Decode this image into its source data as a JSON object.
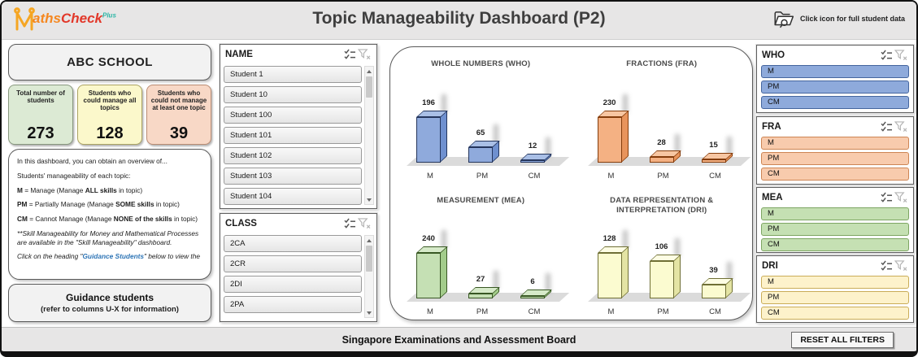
{
  "header": {
    "logo": {
      "part1": "aths",
      "part2": "Check",
      "part3": "Plus"
    },
    "title": "Topic Manageability Dashboard (P2)",
    "student_data_note": "Click icon for full student data"
  },
  "icons": {
    "logo_m": "stylized-M-pencils",
    "folder_search": "open-folder-with-magnifier",
    "multi_select": "checklist-with-checkmarks",
    "clear_filter": "funnel-with-x",
    "scroll_up": "triangle-up",
    "scroll_down": "triangle-down"
  },
  "left_panel": {
    "school_name": "ABC SCHOOL",
    "stat_cards": [
      {
        "label": "Total number of students",
        "value": "273",
        "bg": "#dcead4",
        "border": "#88987f"
      },
      {
        "label": "Students who could manage all topics",
        "value": "128",
        "bg": "#fbf8cb",
        "border": "#aca463"
      },
      {
        "label": "Students who could not manage at least one topic",
        "value": "39",
        "bg": "#f8d8c6",
        "border": "#bb8d74"
      }
    ],
    "info_box": {
      "intro": "In this dashboard, you can obtain an overview of...",
      "subheading": "Students' manageability of each topic:",
      "legend": [
        [
          {
            "t": "M",
            "b": 1
          },
          {
            "t": " = Manage (Manage "
          },
          {
            "t": "ALL skills",
            "b": 1
          },
          {
            "t": " in topic)"
          }
        ],
        [
          {
            "t": "PM",
            "b": 1
          },
          {
            "t": " = Partially Manage (Manage "
          },
          {
            "t": "SOME skills",
            "b": 1
          },
          {
            "t": " in topic)"
          }
        ],
        [
          {
            "t": "CM",
            "b": 1
          },
          {
            "t": " = Cannot Manage (Manage "
          },
          {
            "t": "NONE of the skills",
            "b": 1
          },
          {
            "t": " in topic)"
          }
        ]
      ],
      "note": [
        {
          "t": "**Skill Manageability for Money and Mathematical Processes are available in the \"Skill Manageability\" dashboard.",
          "i": 1
        }
      ],
      "link_line": [
        {
          "t": "Click on the heading \"",
          "i": 1
        },
        {
          "t": "Guidance Students",
          "i": 1,
          "b": 1,
          "c": "#2e75b6"
        },
        {
          "t": "\" below to view the",
          "i": 1
        }
      ]
    },
    "guidance_button": {
      "title": "Guidance students",
      "subtitle": "(refer to columns U-X for information)"
    }
  },
  "name_slicer": {
    "title": "NAME",
    "items": [
      "Student 1",
      "Student 10",
      "Student 100",
      "Student 101",
      "Student 102",
      "Student 103",
      "Student 104"
    ]
  },
  "class_slicer": {
    "title": "CLASS",
    "items": [
      "2CA",
      "2CR",
      "2DI",
      "2PA"
    ]
  },
  "chart_data": [
    {
      "type": "bar",
      "title": "WHOLE NUMBERS (WHO)",
      "categories": [
        "M",
        "PM",
        "CM"
      ],
      "values": [
        196,
        65,
        12
      ],
      "colors": {
        "front": "#8faadc",
        "top": "#a9bfe6",
        "side": "#6f90cf",
        "border": "#24355c"
      }
    },
    {
      "type": "bar",
      "title": "FRACTIONS (FRA)",
      "categories": [
        "M",
        "PM",
        "CM"
      ],
      "values": [
        230,
        28,
        15
      ],
      "colors": {
        "front": "#f4b183",
        "top": "#f7c6a2",
        "side": "#e8945c",
        "border": "#843c0c"
      }
    },
    {
      "type": "bar",
      "title": "MEASUREMENT (MEA)",
      "categories": [
        "M",
        "PM",
        "CM"
      ],
      "values": [
        240,
        27,
        6
      ],
      "colors": {
        "front": "#c5e0b4",
        "top": "#d6eac9",
        "side": "#a3cc8b",
        "border": "#385723"
      }
    },
    {
      "type": "bar",
      "title": "DATA REPRESENTATION & INTERPRETATION (DRI)",
      "categories": [
        "M",
        "PM",
        "CM"
      ],
      "values": [
        128,
        106,
        39
      ],
      "colors": {
        "front": "#fbfbd0",
        "top": "#fdfde4",
        "side": "#e4e4a4",
        "border": "#6f6f35"
      }
    }
  ],
  "topic_slicers": [
    {
      "title": "WHO",
      "items": [
        {
          "label": "M",
          "bg": "#8eaadb",
          "border": "#44659e"
        },
        {
          "label": "PM",
          "bg": "#8eaadb",
          "border": "#44659e"
        },
        {
          "label": "CM",
          "bg": "#8eaadb",
          "border": "#44659e"
        }
      ]
    },
    {
      "title": "FRA",
      "items": [
        {
          "label": "M",
          "bg": "#f8cbad",
          "border": "#cd8554"
        },
        {
          "label": "PM",
          "bg": "#f8cbad",
          "border": "#cd8554"
        },
        {
          "label": "CM",
          "bg": "#f8cbad",
          "border": "#cd8554"
        }
      ]
    },
    {
      "title": "MEA",
      "items": [
        {
          "label": "M",
          "bg": "#c5e0b3",
          "border": "#7da562"
        },
        {
          "label": "PM",
          "bg": "#c5e0b3",
          "border": "#7da562"
        },
        {
          "label": "CM",
          "bg": "#c5e0b3",
          "border": "#7da562"
        }
      ]
    },
    {
      "title": "DRI",
      "items": [
        {
          "label": "M",
          "bg": "#fdf2cb",
          "border": "#c9ac58"
        },
        {
          "label": "PM",
          "bg": "#fdf2cb",
          "border": "#c9ac58"
        },
        {
          "label": "CM",
          "bg": "#fdf2cb",
          "border": "#c9ac58"
        }
      ]
    }
  ],
  "footer": {
    "organisation": "Singapore Examinations and Assessment Board",
    "reset_button": "RESET ALL FILTERS"
  }
}
